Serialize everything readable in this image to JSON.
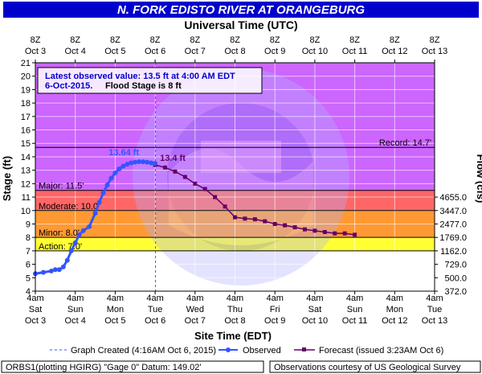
{
  "chart_data": {
    "type": "line",
    "title": "N. FORK EDISTO RIVER AT ORANGEBURG",
    "top_axis_title": "Universal Time (UTC)",
    "bottom_axis_title": "Site Time (EDT)",
    "ylabel_left": "Stage (ft)",
    "ylabel_right": "Flow (cfs)",
    "ylim": [
      4,
      21
    ],
    "yticks": [
      4,
      5,
      6,
      7,
      8,
      9,
      10,
      11,
      12,
      13,
      14,
      15,
      16,
      17,
      18,
      19,
      20,
      21
    ],
    "xlim_days": [
      0,
      10
    ],
    "top_ticks": [
      {
        "d": 0,
        "line1": "8Z",
        "line2": "Oct 3"
      },
      {
        "d": 1,
        "line1": "8Z",
        "line2": "Oct 4"
      },
      {
        "d": 2,
        "line1": "8Z",
        "line2": "Oct 5"
      },
      {
        "d": 3,
        "line1": "8Z",
        "line2": "Oct 6"
      },
      {
        "d": 4,
        "line1": "8Z",
        "line2": "Oct 7"
      },
      {
        "d": 5,
        "line1": "8Z",
        "line2": "Oct 8"
      },
      {
        "d": 6,
        "line1": "8Z",
        "line2": "Oct 9"
      },
      {
        "d": 7,
        "line1": "8Z",
        "line2": "Oct 10"
      },
      {
        "d": 8,
        "line1": "8Z",
        "line2": "Oct 11"
      },
      {
        "d": 9,
        "line1": "8Z",
        "line2": "Oct 12"
      },
      {
        "d": 10,
        "line1": "8Z",
        "line2": "Oct 13"
      }
    ],
    "bottom_ticks": [
      {
        "d": 0,
        "line1": "4am",
        "line2": "Sat",
        "line3": "Oct 3"
      },
      {
        "d": 1,
        "line1": "4am",
        "line2": "Sun",
        "line3": "Oct 4"
      },
      {
        "d": 2,
        "line1": "4am",
        "line2": "Mon",
        "line3": "Oct 5"
      },
      {
        "d": 3,
        "line1": "4am",
        "line2": "Tue",
        "line3": "Oct 6"
      },
      {
        "d": 4,
        "line1": "4am",
        "line2": "Wed",
        "line3": "Oct 7"
      },
      {
        "d": 5,
        "line1": "4am",
        "line2": "Thu",
        "line3": "Oct 8"
      },
      {
        "d": 6,
        "line1": "4am",
        "line2": "Fri",
        "line3": "Oct 9"
      },
      {
        "d": 7,
        "line1": "4am",
        "line2": "Sat",
        "line3": "Oct 10"
      },
      {
        "d": 8,
        "line1": "4am",
        "line2": "Sun",
        "line3": "Oct 11"
      },
      {
        "d": 9,
        "line1": "4am",
        "line2": "Mon",
        "line3": "Oct 12"
      },
      {
        "d": 10,
        "line1": "4am",
        "line2": "Tue",
        "line3": "Oct 13"
      }
    ],
    "flow_ticks": [
      {
        "stage": 5.0,
        "label": "500.0"
      },
      {
        "stage": 4.0,
        "label": "372.0"
      },
      {
        "stage": 6.0,
        "label": "729.0"
      },
      {
        "stage": 7.0,
        "label": "1162.0"
      },
      {
        "stage": 8.0,
        "label": "1769.0"
      },
      {
        "stage": 9.0,
        "label": "2477.0"
      },
      {
        "stage": 10.0,
        "label": "3447.0"
      },
      {
        "stage": 11.0,
        "label": "4655.0"
      }
    ],
    "bands": [
      {
        "from": 4,
        "to": 7,
        "color": "#ffffff"
      },
      {
        "from": 7,
        "to": 8,
        "color": "#ffff33"
      },
      {
        "from": 8,
        "to": 10,
        "color": "#ff9933"
      },
      {
        "from": 10,
        "to": 11.5,
        "color": "#ff6666"
      },
      {
        "from": 11.5,
        "to": 21,
        "color": "#cc66ff"
      }
    ],
    "thresholds": [
      {
        "stage": 7.0,
        "label": "Action: 7.0'"
      },
      {
        "stage": 8.0,
        "label": "Minor: 8.0'"
      },
      {
        "stage": 10.0,
        "label": "Moderate: 10.0'"
      },
      {
        "stage": 11.5,
        "label": "Major: 11.5'"
      },
      {
        "stage": 14.7,
        "label": "Record: 14.7'"
      }
    ],
    "created_day": 3.01,
    "observed": {
      "name": "Observed",
      "color": "#3355ff",
      "x": [
        0.0,
        0.2,
        0.4,
        0.5,
        0.6,
        0.7,
        0.8,
        0.9,
        1.0,
        1.1,
        1.2,
        1.35,
        1.5,
        1.6,
        1.7,
        1.8,
        1.9,
        2.0,
        2.1,
        2.2,
        2.3,
        2.4,
        2.5,
        2.6,
        2.7,
        2.8,
        2.9,
        3.0
      ],
      "y": [
        5.3,
        5.4,
        5.5,
        5.6,
        5.6,
        5.8,
        6.3,
        7.0,
        7.6,
        8.2,
        8.5,
        8.8,
        9.8,
        10.6,
        11.3,
        11.9,
        12.4,
        12.8,
        13.1,
        13.3,
        13.45,
        13.55,
        13.6,
        13.64,
        13.63,
        13.6,
        13.55,
        13.5
      ]
    },
    "forecast": {
      "name": "Forecast (issued 3:23AM Oct 6)",
      "color": "#660066",
      "x": [
        3.0,
        3.25,
        3.5,
        3.75,
        4.0,
        4.25,
        4.5,
        4.75,
        5.0,
        5.25,
        5.5,
        5.75,
        6.0,
        6.25,
        6.5,
        6.75,
        7.0,
        7.25,
        7.5,
        7.75,
        8.0
      ],
      "y": [
        13.4,
        13.2,
        12.9,
        12.5,
        12.0,
        11.6,
        11.0,
        10.3,
        9.5,
        9.4,
        9.35,
        9.2,
        9.0,
        8.9,
        8.75,
        8.6,
        8.5,
        8.4,
        8.3,
        8.3,
        8.2
      ]
    },
    "peak_label": "13.64 ft",
    "forecast_label": "13.4 ft",
    "info_line1": "Latest observed value: 13.5 ft at 4:00 AM EDT",
    "info_line2a": "6-Oct-2015.",
    "info_line2b": "Flood Stage is 8 ft",
    "legend_created": "Graph Created (4:16AM Oct 6, 2015)",
    "legend_observed": "Observed",
    "legend_forecast": "Forecast (issued 3:23AM Oct 6)",
    "footer_left": "ORBS1(plotting HGIRG) \"Gage 0\" Datum: 149.02'",
    "footer_right": "Observations courtesy of US Geological Survey"
  }
}
